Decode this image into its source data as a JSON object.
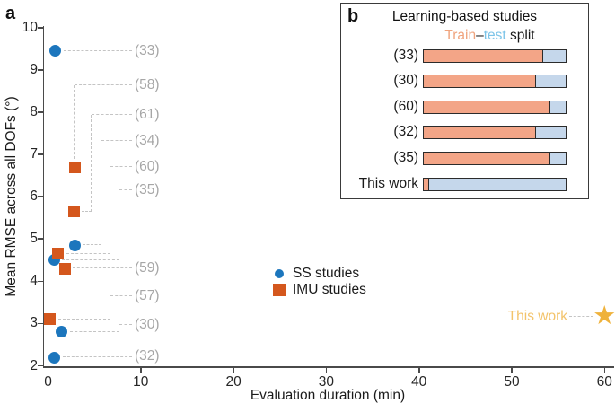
{
  "colors": {
    "ss_blue": "#1c76bd",
    "imu_orange": "#d4571d",
    "star_gold": "#efb23b",
    "this_work_text": "#f3c36a",
    "ref_gray": "#a6a6a6",
    "dash_gray": "#c4c4c4",
    "axis": "#4a4a4a",
    "train_fill": "#f3a587",
    "test_fill": "#c5d7eb",
    "train_text": "#f0a47e",
    "test_text": "#7cc4e8",
    "bar_border": "#2b2b2b"
  },
  "panel_a": {
    "label": "a",
    "legend": [
      {
        "label": "SS studies",
        "marker": "circle"
      },
      {
        "label": "IMU studies",
        "marker": "square"
      }
    ],
    "this_work_label": "This work"
  },
  "chart_data": [
    {
      "type": "scatter",
      "title": "",
      "xlabel": "Evaluation duration (min)",
      "ylabel": "Mean RMSE across all DOFs (°)",
      "xlim": [
        0,
        62
      ],
      "ylim": [
        2,
        10
      ],
      "x_ticks": [
        0,
        10,
        20,
        30,
        40,
        50,
        60
      ],
      "y_ticks": [
        2,
        3,
        4,
        5,
        6,
        7,
        8,
        9,
        10
      ],
      "grid": false,
      "legend_position": "center",
      "series": [
        {
          "name": "SS studies",
          "marker": "circle",
          "color": "#1c76bd",
          "points": [
            {
              "ref": "(33)",
              "x": 0.8,
              "y": 9.45
            },
            {
              "ref": "(34)",
              "x": 2.9,
              "y": 4.85
            },
            {
              "ref": "(35)",
              "x": 0.65,
              "y": 4.5
            },
            {
              "ref": "(30)",
              "x": 1.5,
              "y": 2.8
            },
            {
              "ref": "(32)",
              "x": 0.7,
              "y": 2.2
            }
          ]
        },
        {
          "name": "IMU studies",
          "marker": "square",
          "color": "#d4571d",
          "points": [
            {
              "ref": "(58)",
              "x": 2.9,
              "y": 6.7
            },
            {
              "ref": "(61)",
              "x": 2.8,
              "y": 5.65
            },
            {
              "ref": "(60)",
              "x": 1.1,
              "y": 4.65
            },
            {
              "ref": "(59)",
              "x": 1.8,
              "y": 4.3
            },
            {
              "ref": "(57)",
              "x": 0.2,
              "y": 3.1
            }
          ]
        },
        {
          "name": "This work",
          "marker": "star",
          "glyph": "★",
          "color": "#efb23b",
          "points": [
            {
              "ref": "This work",
              "x": 60,
              "y": 3.15
            }
          ]
        }
      ]
    },
    {
      "type": "bar",
      "orientation": "horizontal",
      "stacked": true,
      "categories": [
        "(33)",
        "(30)",
        "(60)",
        "(32)",
        "(35)",
        "This work"
      ],
      "series": [
        {
          "name": "Train",
          "values": [
            0.84,
            0.79,
            0.89,
            0.79,
            0.89,
            0.04
          ]
        },
        {
          "name": "test",
          "values": [
            0.16,
            0.21,
            0.11,
            0.21,
            0.11,
            0.96
          ]
        }
      ],
      "xlim": [
        0,
        1
      ]
    }
  ],
  "panel_b": {
    "label": "b",
    "title": "Learning-based studies",
    "subtitle_parts": {
      "train": "Train",
      "dash": "–",
      "test": "test",
      "split": " split"
    }
  }
}
